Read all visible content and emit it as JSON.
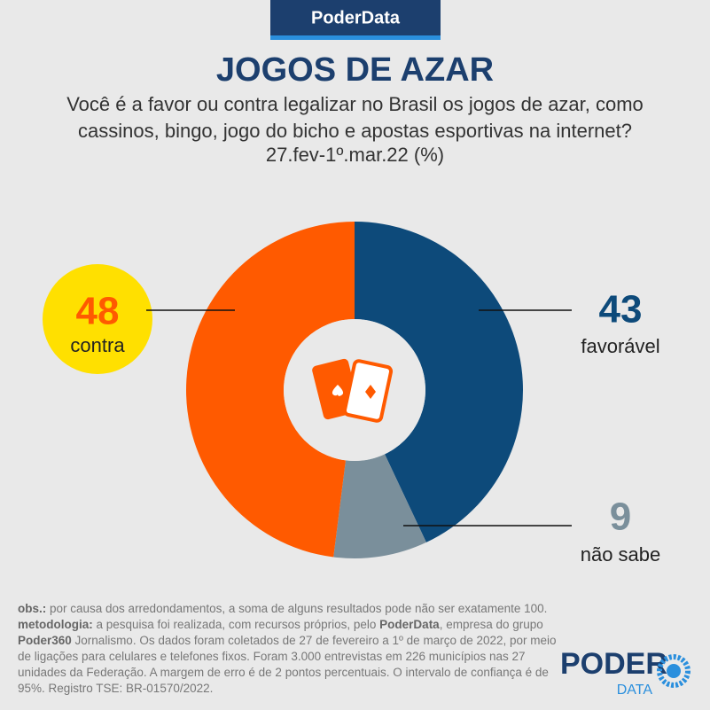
{
  "brand": "PoderData",
  "chart_data": {
    "type": "pie",
    "title": "JOGOS DE AZAR",
    "subtitle": "Você é a favor ou contra legalizar no Brasil os jogos de azar, como cassinos, bingo, jogo do bicho e apostas esportivas na internet?",
    "date": "27.fev-1º.mar.22 (%)",
    "categories": [
      "favorável",
      "não sabe",
      "contra"
    ],
    "values": [
      43,
      9,
      48
    ],
    "colors": [
      "#0d4a7a",
      "#7a8f9b",
      "#ff5a00"
    ]
  },
  "notes": {
    "obs_label": "obs.:",
    "obs_text": " por causa dos arredondamentos, a soma de alguns resultados pode não ser exatamente 100.",
    "method_label": "metodologia:",
    "method_text_1": " a pesquisa foi realizada, com recursos próprios, pelo ",
    "method_bold_1": "PoderData",
    "method_text_2": ", empresa do grupo ",
    "method_bold_2": "Poder360",
    "method_text_3": " Jornalismo. Os dados foram coletados de 27 de fevereiro a 1º de março de 2022, por meio de ligações para celulares e telefones fixos. Foram 3.000 entrevistas em 226 municípios nas 27 unidades da Federação. A margem de erro é de 2 pontos percentuais. O intervalo de confiança é de 95%. Registro TSE: BR-01570/2022."
  },
  "logo": {
    "top": "PODER",
    "bottom": "DATA"
  }
}
